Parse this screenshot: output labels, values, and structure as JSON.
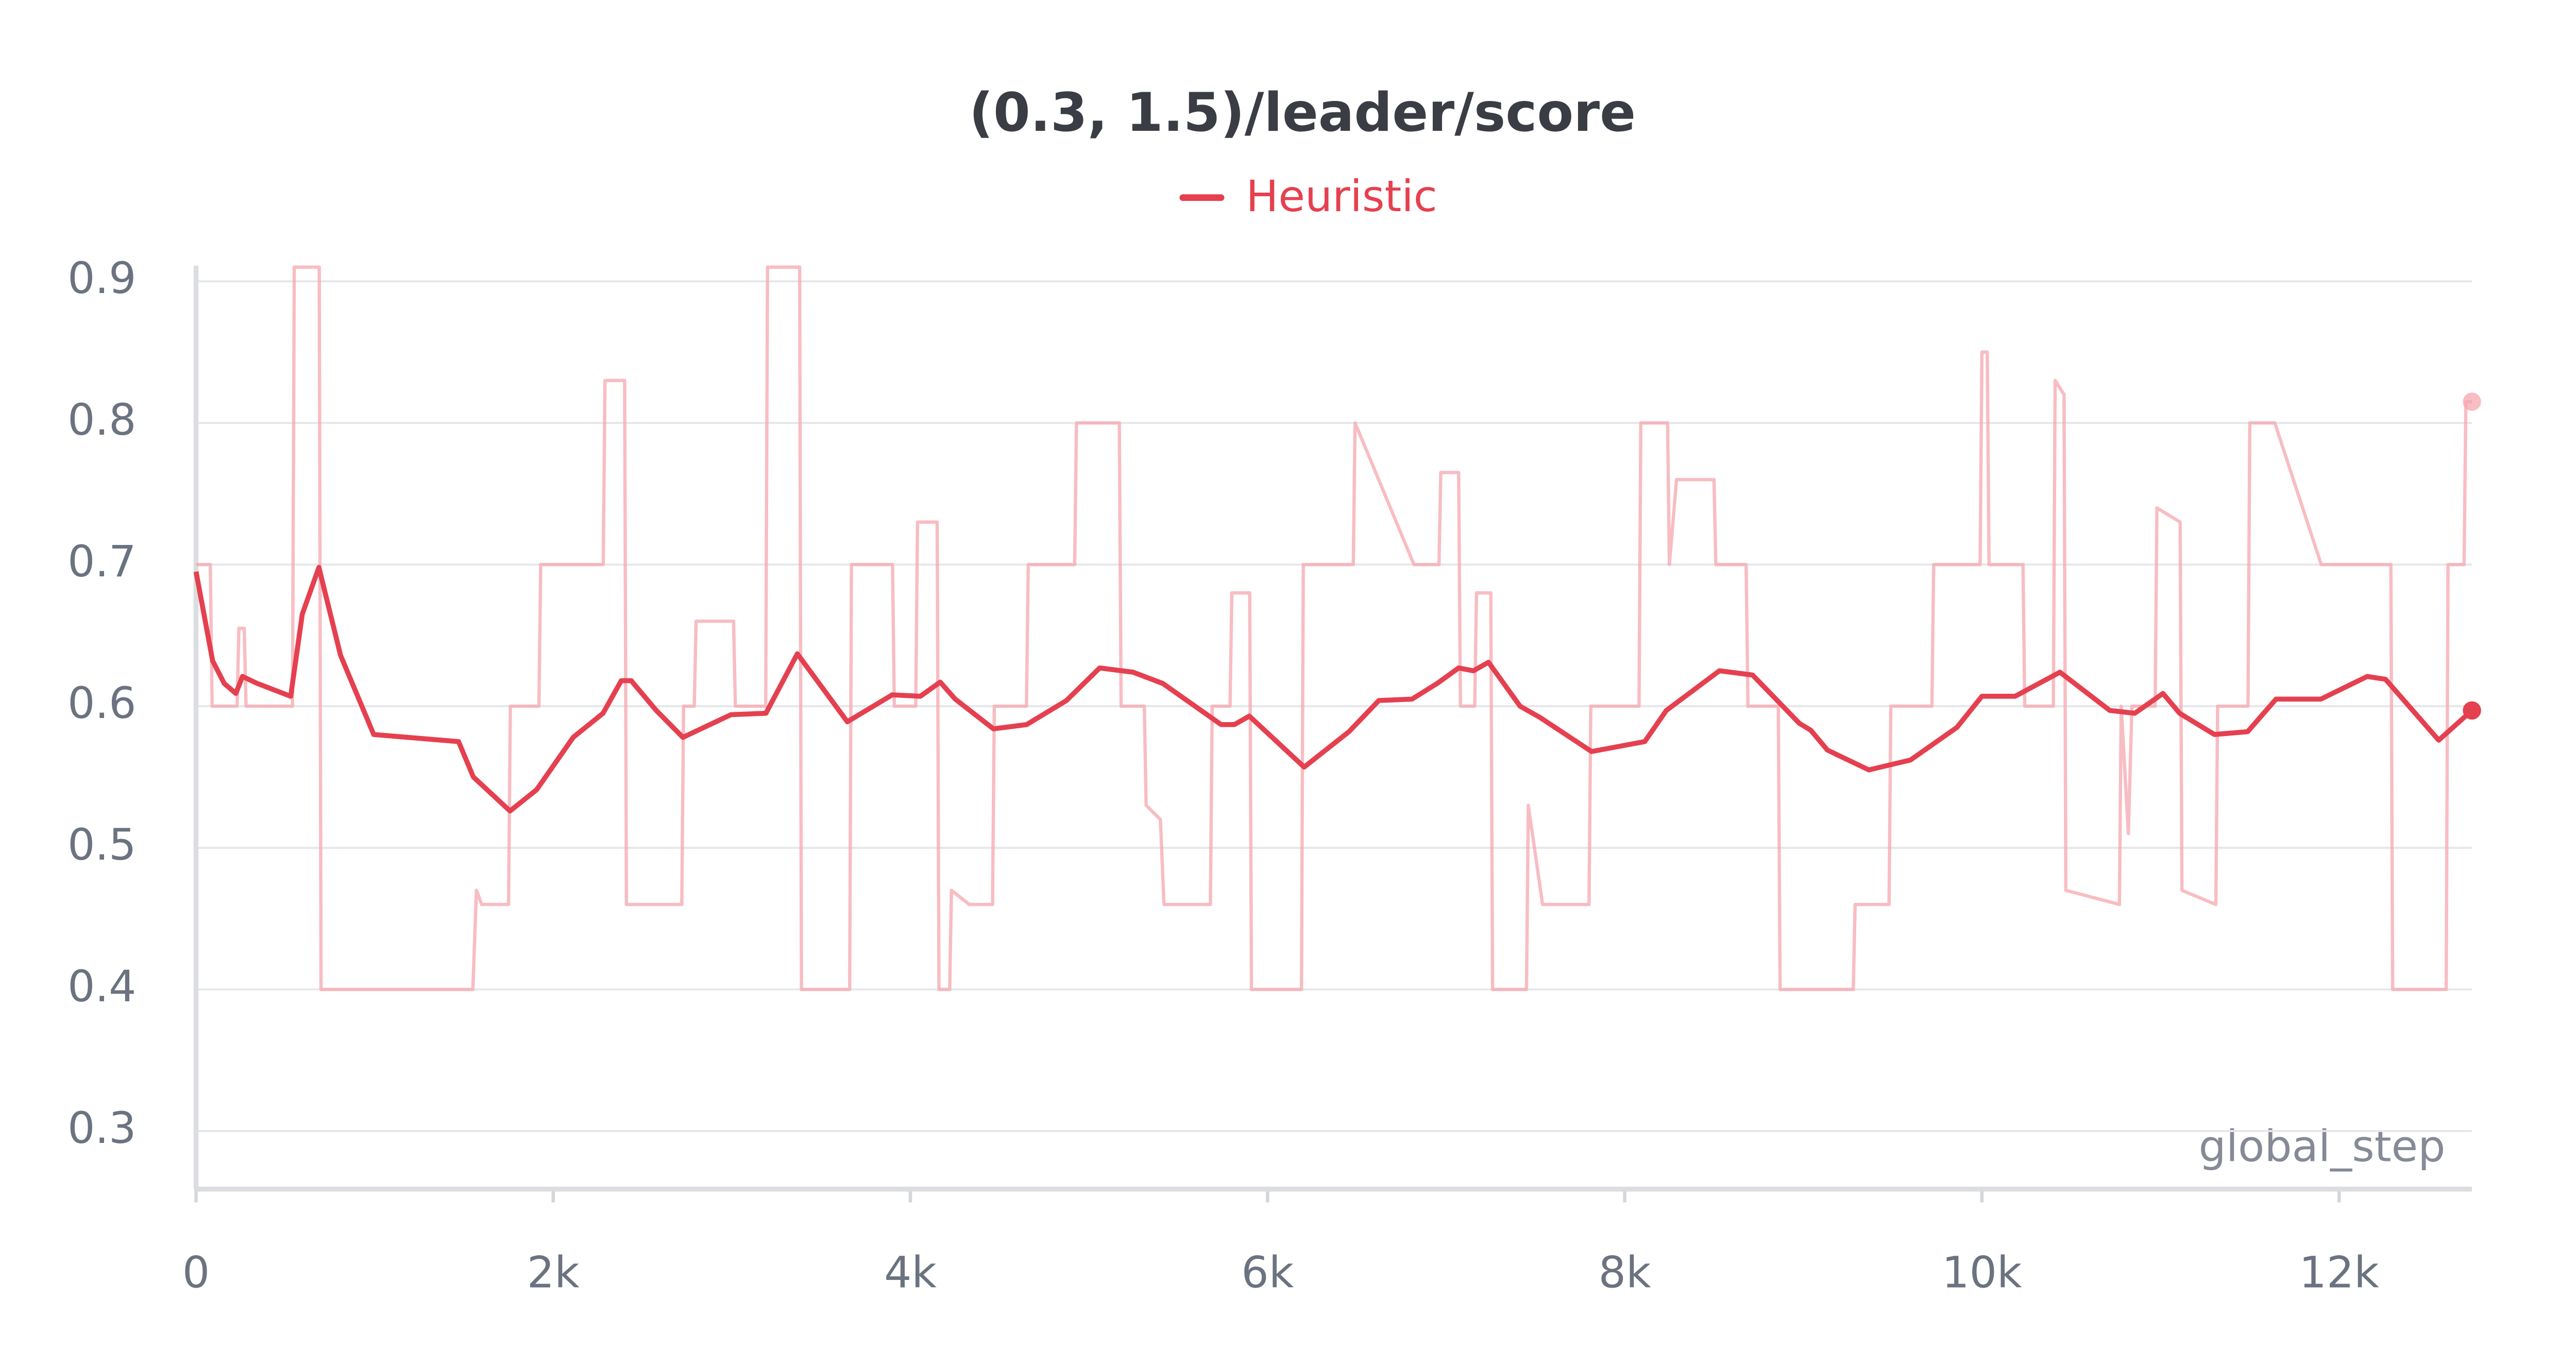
{
  "chart_data": {
    "type": "line",
    "title": "(0.3, 1.5)/leader/score",
    "x_label": "global_step",
    "xlim": [
      0,
      12744
    ],
    "ylim": [
      0.259,
      0.911
    ],
    "xticks": [
      0,
      {
        "value": 2000,
        "label": "2k"
      },
      {
        "value": 4000,
        "label": "4k"
      },
      {
        "value": 6000,
        "label": "6k"
      },
      {
        "value": 8000,
        "label": "8k"
      },
      {
        "value": 10000,
        "label": "10k"
      },
      {
        "value": 12000,
        "label": "12k"
      }
    ],
    "yticks": [
      0.3,
      0.4,
      0.5,
      0.6,
      0.7,
      0.8,
      0.9
    ],
    "grid": true,
    "legend": "top",
    "series": [
      {
        "name": "Heuristic",
        "color": "#e5404f",
        "x": [
          0,
          93,
          158,
          223,
          260,
          344,
          530,
          595,
          688,
          809,
          995,
          1470,
          1553,
          1758,
          1907,
          2112,
          2279,
          2381,
          2437,
          2577,
          2726,
          2995,
          3191,
          3367,
          3647,
          3898,
          4056,
          4167,
          4251,
          4465,
          4651,
          4874,
          5060,
          5247,
          5414,
          5740,
          5814,
          5898,
          6205,
          6456,
          6623,
          6809,
          6949,
          7070,
          7153,
          7237,
          7414,
          7526,
          7814,
          8112,
          8233,
          8530,
          8716,
          8977,
          9042,
          9135,
          9367,
          9600,
          9860,
          10000,
          10186,
          10437,
          10716,
          10856,
          11014,
          11107,
          11302,
          11488,
          11647,
          11898,
          12158,
          12260,
          12558,
          12744
        ],
        "values": [
          0.695,
          0.632,
          0.616,
          0.609,
          0.621,
          0.616,
          0.607,
          0.665,
          0.698,
          0.636,
          0.58,
          0.575,
          0.55,
          0.526,
          0.541,
          0.578,
          0.595,
          0.618,
          0.618,
          0.597,
          0.578,
          0.594,
          0.595,
          0.637,
          0.589,
          0.608,
          0.607,
          0.617,
          0.605,
          0.584,
          0.587,
          0.604,
          0.627,
          0.624,
          0.616,
          0.587,
          0.587,
          0.593,
          0.557,
          0.582,
          0.604,
          0.605,
          0.616,
          0.627,
          0.625,
          0.631,
          0.6,
          0.592,
          0.568,
          0.575,
          0.597,
          0.625,
          0.622,
          0.588,
          0.583,
          0.569,
          0.555,
          0.562,
          0.585,
          0.607,
          0.607,
          0.624,
          0.597,
          0.595,
          0.609,
          0.595,
          0.58,
          0.582,
          0.605,
          0.605,
          0.621,
          0.619,
          0.576,
          0.597
        ]
      }
    ],
    "raw_series": {
      "color": "#f4a7ad",
      "x": [
        0,
        80,
        90,
        230,
        240,
        270,
        280,
        540,
        550,
        690,
        700,
        1550,
        1570,
        1600,
        1750,
        1760,
        1920,
        1930,
        2280,
        2290,
        2400,
        2410,
        2720,
        2730,
        2790,
        2800,
        3010,
        3020,
        3190,
        3200,
        3380,
        3390,
        3660,
        3670,
        3900,
        3910,
        4030,
        4040,
        4150,
        4160,
        4220,
        4230,
        4330,
        4460,
        4470,
        4650,
        4660,
        4920,
        4930,
        5170,
        5180,
        5310,
        5320,
        5400,
        5420,
        5680,
        5690,
        5790,
        5800,
        5900,
        5910,
        6190,
        6200,
        6480,
        6490,
        6820,
        6960,
        6970,
        7070,
        7080,
        7160,
        7170,
        7250,
        7260,
        7450,
        7460,
        7540,
        7800,
        7810,
        8080,
        8090,
        8240,
        8250,
        8290,
        8500,
        8510,
        8680,
        8690,
        8860,
        8870,
        9280,
        9290,
        9480,
        9490,
        9720,
        9730,
        9990,
        10000,
        10030,
        10040,
        10230,
        10240,
        10400,
        10410,
        10460,
        10470,
        10770,
        10780,
        10820,
        10840,
        10970,
        10980,
        11110,
        11120,
        11310,
        11320,
        11490,
        11500,
        11640,
        11900,
        12290,
        12300,
        12600,
        12610,
        12700,
        12710,
        12744
      ],
      "values": [
        0.7,
        0.7,
        0.6,
        0.6,
        0.655,
        0.655,
        0.6,
        0.6,
        0.91,
        0.91,
        0.4,
        0.4,
        0.47,
        0.46,
        0.46,
        0.6,
        0.6,
        0.7,
        0.7,
        0.83,
        0.83,
        0.46,
        0.46,
        0.6,
        0.6,
        0.66,
        0.66,
        0.6,
        0.6,
        0.91,
        0.91,
        0.4,
        0.4,
        0.7,
        0.7,
        0.6,
        0.6,
        0.73,
        0.73,
        0.4,
        0.4,
        0.47,
        0.46,
        0.46,
        0.6,
        0.6,
        0.7,
        0.7,
        0.8,
        0.8,
        0.6,
        0.6,
        0.53,
        0.52,
        0.46,
        0.46,
        0.6,
        0.6,
        0.68,
        0.68,
        0.4,
        0.4,
        0.7,
        0.7,
        0.8,
        0.7,
        0.7,
        0.765,
        0.765,
        0.6,
        0.6,
        0.68,
        0.68,
        0.4,
        0.4,
        0.53,
        0.46,
        0.46,
        0.6,
        0.6,
        0.8,
        0.8,
        0.7,
        0.76,
        0.76,
        0.7,
        0.7,
        0.6,
        0.6,
        0.4,
        0.4,
        0.46,
        0.46,
        0.6,
        0.6,
        0.7,
        0.7,
        0.85,
        0.85,
        0.7,
        0.7,
        0.6,
        0.6,
        0.83,
        0.82,
        0.47,
        0.46,
        0.6,
        0.51,
        0.6,
        0.6,
        0.74,
        0.73,
        0.47,
        0.46,
        0.6,
        0.6,
        0.8,
        0.8,
        0.7,
        0.7,
        0.4,
        0.4,
        0.7,
        0.7,
        0.815,
        0.815
      ]
    }
  }
}
